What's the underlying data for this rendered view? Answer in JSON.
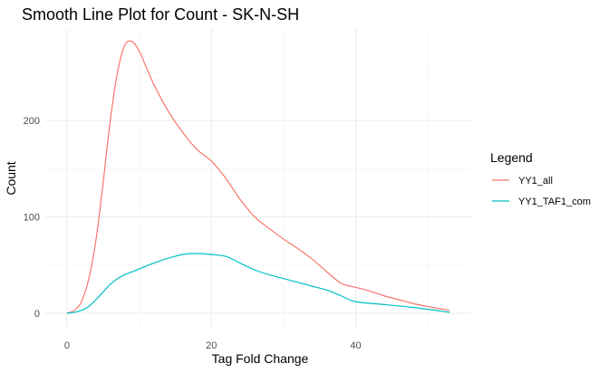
{
  "chart_data": {
    "type": "line",
    "title": "Smooth Line Plot for Count - SK-N-SH",
    "xlabel": "Tag Fold Change",
    "ylabel": "Count",
    "xlim": [
      -3,
      56
    ],
    "ylim": [
      -15,
      295
    ],
    "x_ticks": [
      0,
      20,
      40
    ],
    "y_ticks": [
      0,
      100,
      200
    ],
    "x_tick_labels": [
      "0",
      "20",
      "40"
    ],
    "y_tick_labels": [
      "0",
      "100",
      "200"
    ],
    "x_minor_ticks": [
      10,
      30,
      50
    ],
    "y_minor_ticks": [
      50,
      150,
      250
    ],
    "grid": true,
    "legend": {
      "title": "Legend",
      "position": "right"
    },
    "series": [
      {
        "name": "YY1_all",
        "color": "#F8766D",
        "x": [
          0,
          1,
          2,
          3,
          4,
          5,
          6,
          7,
          8,
          9,
          10,
          11,
          12,
          14,
          16,
          18,
          20,
          22,
          24,
          26,
          28,
          30,
          32,
          34,
          36,
          38,
          40,
          42,
          44,
          46,
          48,
          50,
          53
        ],
        "y": [
          0,
          3,
          12,
          35,
          75,
          135,
          200,
          250,
          278,
          282,
          272,
          255,
          238,
          210,
          188,
          170,
          158,
          140,
          118,
          100,
          88,
          77,
          67,
          56,
          43,
          31,
          27,
          23,
          18,
          14,
          10,
          7,
          3
        ]
      },
      {
        "name": "YY1_TAF1_com",
        "color": "#00BFC4",
        "x": [
          0,
          1,
          2,
          3,
          4,
          5,
          6,
          7,
          8,
          9,
          10,
          12,
          14,
          16,
          18,
          20,
          22,
          24,
          26,
          28,
          30,
          32,
          34,
          36,
          38,
          40,
          44,
          48,
          53
        ],
        "y": [
          0,
          1,
          3,
          7,
          14,
          22,
          30,
          36,
          40,
          43,
          46,
          52,
          57,
          61,
          62,
          61,
          59,
          52,
          45,
          40,
          36,
          32,
          28,
          24,
          18,
          12,
          9,
          6,
          1
        ]
      }
    ]
  }
}
